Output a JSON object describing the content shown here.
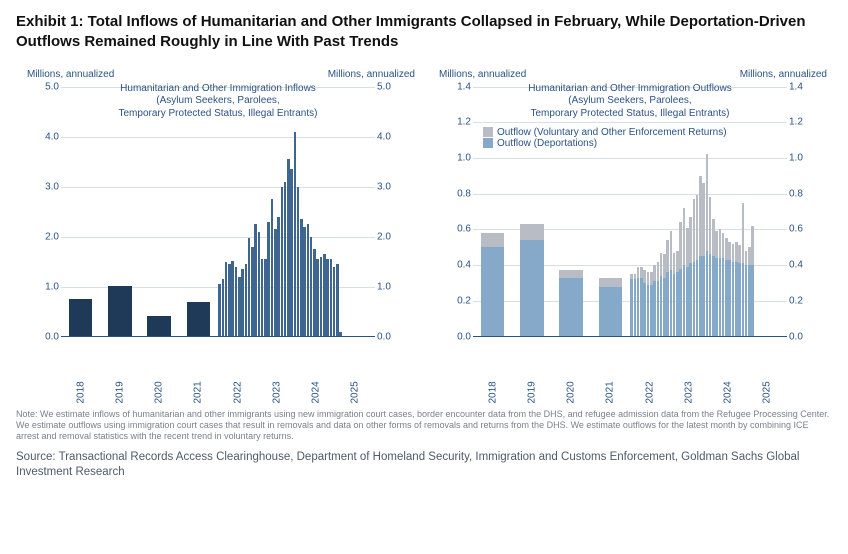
{
  "title": "Exhibit 1: Total Inflows of Humanitarian and Other Immigrants Collapsed in February, While Deportation-Driven Outflows Remained Roughly in Line With Past Trends",
  "note": "Note: We estimate inflows of humanitarian and other immigrants using new immigration court cases, border encounter data from the DHS, and refugee admission data from the Refugee Processing Center. We estimate outflows using immigration court cases that result in removals and data on other forms of removals and returns from the DHS. We estimate outflows for the latest month by combining ICE arrest and removal statistics with the recent trend in voluntary returns.",
  "source": "Source: Transactional Records Access Clearinghouse, Department of Homeland Security, Immigration and Customs Enforcement, Goldman Sachs Global Investment Research",
  "colors": {
    "bar_dark": "#1f3a59",
    "bar_mid": "#3f6591",
    "bar_light": "#87a9c9",
    "bar_gray": "#b8bcc4",
    "axis_text": "#2b5284",
    "gridline": "#d9dde4",
    "title_text": "#111111",
    "note_text": "#7a818c",
    "source_text": "#4e5a6b",
    "background": "#ffffff"
  },
  "typography": {
    "title_size": 15,
    "title_weight": 700,
    "subtitle_size": 10,
    "axis_label_size": 10,
    "note_size": 9,
    "source_size": 11.5,
    "font_family": "Arial"
  },
  "left_chart": {
    "type": "bar",
    "y_unit_left": "Millions, annualized",
    "y_unit_right": "Millions, annualized",
    "subtitle": "Humanitarian and Other Immigration Inflows\n(Asylum Seekers, Parolees,\nTemporary Protected Status, Illegal Entrants)",
    "ylim": [
      0,
      5.0
    ],
    "ytick_step": 1.0,
    "yticks": [
      "0.0",
      "1.0",
      "2.0",
      "3.0",
      "4.0",
      "5.0"
    ],
    "x_years": [
      2018,
      2019,
      2020,
      2021,
      2022,
      2023,
      2024,
      2025
    ],
    "annual_bars": [
      {
        "year": 2018,
        "value": 0.76,
        "color": "#1f3a59"
      },
      {
        "year": 2019,
        "value": 1.02,
        "color": "#1f3a59"
      },
      {
        "year": 2020,
        "value": 0.42,
        "color": "#1f3a59"
      },
      {
        "year": 2021,
        "value": 0.7,
        "color": "#1f3a59"
      }
    ],
    "monthly_bars": {
      "color": "#3f6591",
      "start_year": 2022,
      "values": [
        1.05,
        1.15,
        1.5,
        1.45,
        1.52,
        1.4,
        1.2,
        1.35,
        1.45,
        1.98,
        1.8,
        2.25,
        2.1,
        1.55,
        1.55,
        2.3,
        2.75,
        2.15,
        2.4,
        3.0,
        3.1,
        3.55,
        3.35,
        4.1,
        3.0,
        2.35,
        2.2,
        2.25,
        2.0,
        1.75,
        1.55,
        1.6,
        1.65,
        1.55,
        1.55,
        1.4,
        1.45,
        0.1
      ]
    }
  },
  "right_chart": {
    "type": "stacked-bar",
    "y_unit_left": "Millions, annualized",
    "y_unit_right": "Millions, annualized",
    "subtitle": "Humanitarian and Other Immigration Outflows\n(Asylum Seekers, Parolees,\nTemporary Protected Status, Illegal Entrants)",
    "legend": [
      {
        "label": "Outflow (Voluntary and Other Enforcement Returns)",
        "color": "#b8bcc4"
      },
      {
        "label": "Outflow (Deportations)",
        "color": "#87a9c9"
      }
    ],
    "ylim": [
      0,
      1.4
    ],
    "ytick_step": 0.2,
    "yticks": [
      "0.0",
      "0.2",
      "0.4",
      "0.6",
      "0.8",
      "1.0",
      "1.2",
      "1.4"
    ],
    "x_years": [
      2018,
      2019,
      2020,
      2021,
      2022,
      2023,
      2024,
      2025
    ],
    "annual_bars": [
      {
        "year": 2018,
        "deport": 0.5,
        "voluntary": 0.08
      },
      {
        "year": 2019,
        "deport": 0.54,
        "voluntary": 0.09
      },
      {
        "year": 2020,
        "deport": 0.33,
        "voluntary": 0.04
      },
      {
        "year": 2021,
        "deport": 0.28,
        "voluntary": 0.05
      }
    ],
    "monthly_bars": {
      "start_year": 2022,
      "deport": [
        0.32,
        0.32,
        0.33,
        0.33,
        0.3,
        0.29,
        0.29,
        0.31,
        0.31,
        0.34,
        0.33,
        0.36,
        0.37,
        0.35,
        0.36,
        0.38,
        0.4,
        0.39,
        0.41,
        0.42,
        0.43,
        0.45,
        0.45,
        0.48,
        0.46,
        0.45,
        0.44,
        0.44,
        0.44,
        0.43,
        0.43,
        0.42,
        0.42,
        0.41,
        0.41,
        0.4,
        0.4,
        0.4
      ],
      "voluntary": [
        0.03,
        0.03,
        0.06,
        0.06,
        0.07,
        0.07,
        0.07,
        0.09,
        0.11,
        0.13,
        0.13,
        0.18,
        0.22,
        0.12,
        0.12,
        0.26,
        0.32,
        0.22,
        0.26,
        0.35,
        0.36,
        0.45,
        0.41,
        0.54,
        0.32,
        0.21,
        0.15,
        0.16,
        0.14,
        0.12,
        0.1,
        0.1,
        0.11,
        0.1,
        0.34,
        0.08,
        0.1,
        0.22
      ]
    }
  }
}
